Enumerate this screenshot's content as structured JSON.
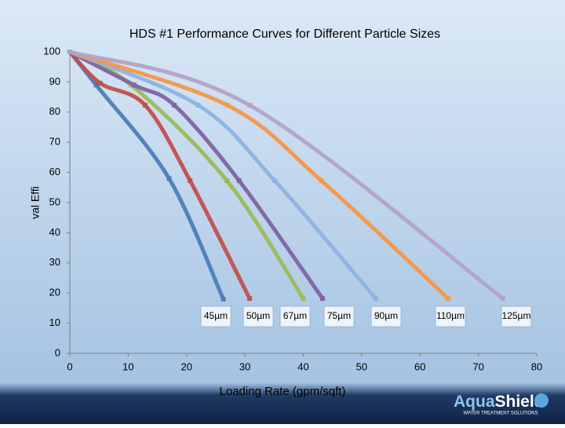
{
  "chart_data": {
    "type": "line",
    "title": "HDS #1 Performance Curves for Different Particle Sizes",
    "x_label": "Loading Rate (gpm/sqft)",
    "y_label": "val Effi",
    "xlim": [
      0,
      80
    ],
    "xticks": [
      0,
      10,
      20,
      30,
      40,
      50,
      60,
      70,
      80
    ],
    "ylim": [
      0,
      100
    ],
    "yticks": [
      0,
      10,
      20,
      30,
      40,
      50,
      60,
      70,
      80,
      90,
      100
    ],
    "series": [
      {
        "name": "45µm",
        "color": "#4a7ebb",
        "x": [
          0,
          4.5,
          17,
          26.3
        ],
        "values": [
          100,
          89,
          58,
          18
        ]
      },
      {
        "name": "50µm",
        "color": "#c0504d",
        "x": [
          0,
          5.2,
          12.9,
          20.6,
          30.8
        ],
        "values": [
          100,
          89.6,
          82.3,
          57.3,
          18.2
        ]
      },
      {
        "name": "67µm",
        "color": "#9bbb59",
        "x": [
          0,
          10.5,
          26.9,
          40
        ],
        "values": [
          100,
          89,
          57.3,
          18.2
        ]
      },
      {
        "name": "75µm",
        "color": "#8064a2",
        "x": [
          0,
          11,
          17.9,
          29,
          43.3
        ],
        "values": [
          100,
          89,
          82.3,
          57.3,
          18.2
        ]
      },
      {
        "name": "90µm",
        "color": "#8db3e2",
        "x": [
          0,
          22,
          35.1,
          52.4
        ],
        "values": [
          100,
          82.3,
          57.3,
          18.2
        ]
      },
      {
        "name": "110µm",
        "color": "#f79646",
        "x": [
          0,
          27,
          43.1,
          64.8
        ],
        "values": [
          100,
          82.3,
          57.3,
          18.2
        ]
      },
      {
        "name": "125µm",
        "color": "#b3a2c7",
        "x": [
          0,
          30.8,
          74.2
        ],
        "values": [
          100,
          82.3,
          18.2
        ]
      }
    ]
  },
  "logo": {
    "brand_a": "Aqua",
    "brand_b": "Shield",
    "tagline": "WATER TREATMENT SOLUTIONS"
  }
}
